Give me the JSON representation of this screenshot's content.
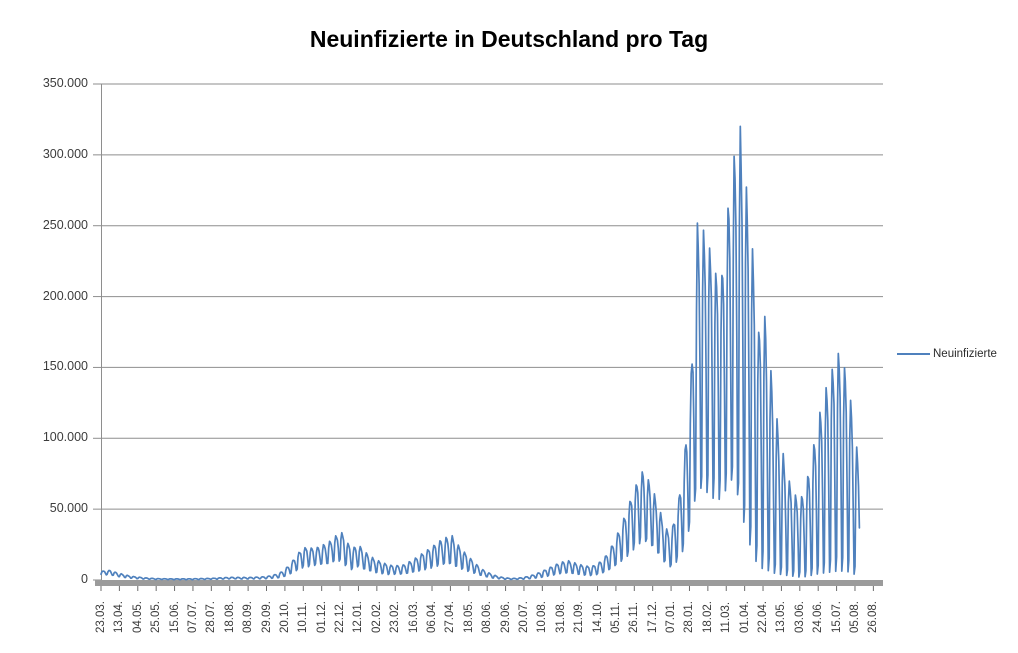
{
  "chart_data": {
    "type": "line",
    "title": "Neuinfizierte in Deutschland pro Tag",
    "xlabel": "",
    "ylabel": "",
    "grid": "horizontal-only",
    "legend_position": "right-middle",
    "background": "#ffffff",
    "colors": {
      "series_line": "#4F81BD",
      "gridline": "#8E8E8E",
      "y_axis_line": "#8E8E8E",
      "x_axis_bar": "#9B9B9B",
      "tick": "#6b6b6b",
      "title_text": "#000000",
      "axis_text": "#3c3c3c"
    },
    "y": {
      "lim": [
        0,
        350000
      ],
      "tick_step": 50000,
      "tick_labels": [
        "350.000",
        "300.000",
        "250.000",
        "200.000",
        "150.000",
        "100.000",
        "50.000",
        "0"
      ]
    },
    "x": {
      "tick_step_days": 21,
      "total_days_span": 893,
      "tick_labels": [
        "23.03.",
        "13.04.",
        "04.05.",
        "25.05.",
        "15.06.",
        "07.07.",
        "28.07.",
        "18.08.",
        "08.09.",
        "29.09.",
        "20.10.",
        "10.11.",
        "01.12.",
        "22.12.",
        "12.01.",
        "02.02.",
        "23.02.",
        "16.03.",
        "06.04.",
        "27.04.",
        "18.05.",
        "08.06.",
        "29.06.",
        "20.07.",
        "10.08.",
        "31.08.",
        "21.09.",
        "14.10.",
        "05.11.",
        "26.11.",
        "17.12.",
        "07.01.",
        "28.01.",
        "18.02.",
        "11.03.",
        "01.04.",
        "22.04.",
        "13.05.",
        "03.06.",
        "24.06.",
        "15.07.",
        "05.08.",
        "26.08."
      ]
    },
    "series": [
      {
        "name": "Neuinfizierte",
        "color": "#4F81BD",
        "note": "daily values, weekly reporting oscillation; encoded as weekly min/max envelope keypoints read from the plot",
        "start_label": "23.03.",
        "start_weekday": "Monday",
        "end_day": 866,
        "weekday_factors_mon_to_sun": [
          0.08,
          0.75,
          1.0,
          0.93,
          0.8,
          0.45,
          0.02
        ],
        "envelope_day_low_high": [
          [
            0,
            3800,
            6200
          ],
          [
            10,
            3500,
            6800
          ],
          [
            21,
            2200,
            4600
          ],
          [
            35,
            1200,
            2600
          ],
          [
            49,
            700,
            1600
          ],
          [
            63,
            400,
            1000
          ],
          [
            84,
            300,
            800
          ],
          [
            105,
            300,
            900
          ],
          [
            126,
            500,
            1200
          ],
          [
            147,
            800,
            1900
          ],
          [
            168,
            700,
            1800
          ],
          [
            189,
            900,
            2400
          ],
          [
            203,
            1500,
            4500
          ],
          [
            210,
            2500,
            7500
          ],
          [
            217,
            4500,
            12000
          ],
          [
            224,
            7000,
            18000
          ],
          [
            231,
            9000,
            23000
          ],
          [
            245,
            10000,
            22500
          ],
          [
            259,
            11000,
            26000
          ],
          [
            268,
            13500,
            31000
          ],
          [
            275,
            13500,
            33500
          ],
          [
            282,
            8000,
            26000
          ],
          [
            287,
            7000,
            22500
          ],
          [
            294,
            9000,
            25000
          ],
          [
            301,
            7000,
            20000
          ],
          [
            308,
            6000,
            16500
          ],
          [
            315,
            5000,
            14000
          ],
          [
            329,
            3800,
            10500
          ],
          [
            343,
            4000,
            10000
          ],
          [
            350,
            4500,
            12000
          ],
          [
            357,
            5500,
            14500
          ],
          [
            364,
            6500,
            17500
          ],
          [
            371,
            7500,
            20500
          ],
          [
            378,
            8500,
            23500
          ],
          [
            385,
            9500,
            27000
          ],
          [
            392,
            10500,
            29500
          ],
          [
            401,
            11000,
            31000
          ],
          [
            406,
            9000,
            26000
          ],
          [
            413,
            7500,
            21000
          ],
          [
            420,
            6000,
            16500
          ],
          [
            427,
            4500,
            12000
          ],
          [
            434,
            3000,
            8000
          ],
          [
            441,
            2000,
            5500
          ],
          [
            448,
            1300,
            3600
          ],
          [
            455,
            800,
            2300
          ],
          [
            462,
            500,
            1500
          ],
          [
            469,
            400,
            1100
          ],
          [
            476,
            450,
            1300
          ],
          [
            483,
            600,
            1900
          ],
          [
            490,
            900,
            2900
          ],
          [
            497,
            1400,
            4400
          ],
          [
            504,
            2000,
            6200
          ],
          [
            511,
            2800,
            8400
          ],
          [
            518,
            3600,
            10500
          ],
          [
            525,
            4300,
            12500
          ],
          [
            534,
            4700,
            13500
          ],
          [
            539,
            4300,
            12500
          ],
          [
            546,
            3800,
            11000
          ],
          [
            553,
            3400,
            10000
          ],
          [
            560,
            3200,
            9500
          ],
          [
            567,
            3800,
            11500
          ],
          [
            574,
            5000,
            15000
          ],
          [
            581,
            7000,
            21000
          ],
          [
            588,
            10000,
            30000
          ],
          [
            595,
            13500,
            40000
          ],
          [
            602,
            17500,
            52000
          ],
          [
            609,
            22000,
            65000
          ],
          [
            618,
            26000,
            76500
          ],
          [
            623,
            25000,
            73000
          ],
          [
            630,
            22000,
            64000
          ],
          [
            637,
            17500,
            51000
          ],
          [
            644,
            12000,
            38000
          ],
          [
            651,
            9000,
            31000
          ],
          [
            655,
            11000,
            45000
          ],
          [
            660,
            14000,
            58000
          ],
          [
            667,
            22000,
            92000
          ],
          [
            674,
            38000,
            145000
          ],
          [
            681,
            60000,
            250000
          ],
          [
            688,
            62000,
            246000
          ],
          [
            695,
            60000,
            235000
          ],
          [
            702,
            55000,
            218000
          ],
          [
            709,
            54000,
            216000
          ],
          [
            716,
            60000,
            262000
          ],
          [
            723,
            65000,
            297000
          ],
          [
            730,
            45000,
            318000
          ],
          [
            737,
            30000,
            277000
          ],
          [
            744,
            15000,
            235000
          ],
          [
            751,
            6000,
            176000
          ],
          [
            756,
            4000,
            198000
          ],
          [
            763,
            3000,
            158000
          ],
          [
            770,
            2000,
            120000
          ],
          [
            777,
            2000,
            95000
          ],
          [
            784,
            1800,
            73000
          ],
          [
            791,
            1500,
            62000
          ],
          [
            798,
            1000,
            56000
          ],
          [
            805,
            1000,
            67000
          ],
          [
            812,
            1500,
            88000
          ],
          [
            819,
            2000,
            112000
          ],
          [
            826,
            2500,
            131000
          ],
          [
            833,
            3000,
            146000
          ],
          [
            840,
            3500,
            157000
          ],
          [
            842,
            3500,
            161000
          ],
          [
            852,
            3000,
            146000
          ],
          [
            859,
            2000,
            112000
          ],
          [
            866,
            1000,
            79000
          ]
        ],
        "notable_values": {
          "first_wave_peak_apr2020": 6500,
          "winter_wave_peak_dec2020": 33500,
          "spring_wave_peak_apr2021": 31000,
          "autumn_wave_peak_nov2021": 76500,
          "omicron_peak_end_jan2022": 250000,
          "max_peak_mid_mar2022": 318000,
          "summer_wave_peak_jul2022": 161000,
          "last_value": 45000
        }
      }
    ]
  },
  "legend": {
    "label": "Neuinfizierte"
  }
}
